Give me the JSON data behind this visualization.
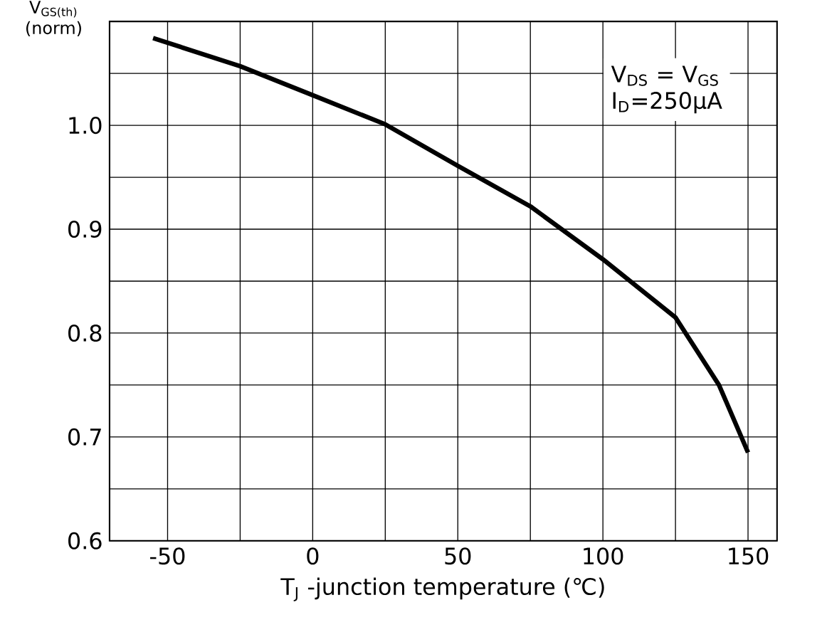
{
  "chart_data": {
    "type": "line",
    "ylabel": "V$_{GS(th)}$ (norm)",
    "xlabel": "T$_{J}$ -junction temperature (℃)",
    "annotations": [
      "V$_{DS}$ = V$_{GS}$",
      "I$_{D}$=250µA"
    ],
    "xlim": [
      -70,
      160
    ],
    "ylim": [
      0.6,
      1.1
    ],
    "xticks": [
      -50,
      {
        "value": -25,
        "label": null
      },
      0,
      {
        "value": 25,
        "label": null
      },
      50,
      {
        "value": 75,
        "label": null
      },
      100,
      {
        "value": 125,
        "label": null
      },
      150
    ],
    "yticks": [
      0.6,
      {
        "value": 0.65,
        "label": null
      },
      0.7,
      {
        "value": 0.75,
        "label": null
      },
      0.8,
      {
        "value": 0.85,
        "label": null
      },
      0.9,
      {
        "value": 0.95,
        "label": null
      },
      {
        "value": 1.0,
        "label": "1.0"
      },
      {
        "value": 1.05,
        "label": null
      }
    ],
    "grid": true,
    "marker": "none",
    "line_style": "solid",
    "series": [
      {
        "color": "#000000",
        "x": [
          -55,
          -25,
          0,
          25,
          50,
          75,
          100,
          125,
          140,
          150
        ],
        "values": [
          1.084,
          1.057,
          1.029,
          1.001,
          0.961,
          0.922,
          0.871,
          0.815,
          0.75,
          0.685
        ]
      }
    ]
  }
}
